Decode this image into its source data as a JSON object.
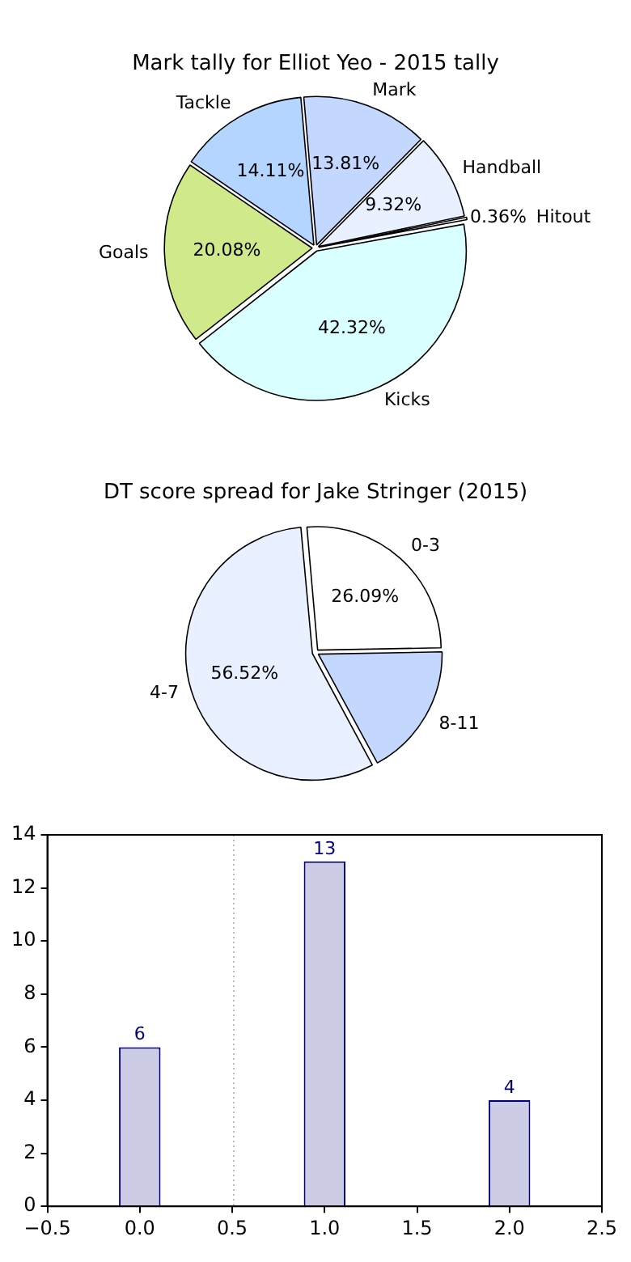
{
  "chart_data": [
    {
      "type": "pie",
      "title": "Mark tally for Elliot Yeo - 2015 tally",
      "categories": [
        "Mark",
        "Handball",
        "Hitout",
        "Kicks",
        "Goals",
        "Tackle"
      ],
      "values": [
        13.81,
        9.32,
        0.36,
        42.32,
        20.08,
        14.11
      ],
      "value_labels": [
        "13.81%",
        "9.32%",
        "0.36%",
        "42.32%",
        "20.08%",
        "14.11%"
      ],
      "colors": [
        "#c4d8ff",
        "#e9f0ff",
        "#ffffff",
        "#d9ffff",
        "#cfe98b",
        "#b3d5ff"
      ],
      "legend": false
    },
    {
      "type": "pie",
      "title": "DT score spread for Jake Stringer (2015)",
      "categories": [
        "0-3",
        "8-11",
        "4-7"
      ],
      "values": [
        26.09,
        17.39,
        56.52
      ],
      "value_labels": [
        "26.09%",
        null,
        "56.52%"
      ],
      "colors": [
        "#ffffff",
        "#c4d8ff",
        "#e9f0ff"
      ],
      "legend": false
    },
    {
      "type": "bar",
      "x": [
        0,
        1,
        2
      ],
      "values": [
        6,
        13,
        4
      ],
      "color": "#cccce6",
      "data_labels": true,
      "xlim": [
        -0.5,
        2.5
      ],
      "xticks": [
        {
          "value": -0.5,
          "label": "−0.5"
        },
        {
          "value": 0,
          "label": "0.0"
        },
        0.5,
        {
          "value": 1,
          "label": "1.0"
        },
        1.5,
        {
          "value": 2,
          "label": "2.0"
        },
        2.5
      ],
      "ylim": [
        0,
        14
      ],
      "yticks": [
        0,
        2,
        4,
        6,
        8,
        10,
        12,
        14
      ],
      "grid": false,
      "legend": false,
      "ref_lines": [
        {
          "axis": "x",
          "value": 0.5,
          "color": "#bbbbbb",
          "line_style": "dotted"
        }
      ]
    }
  ]
}
